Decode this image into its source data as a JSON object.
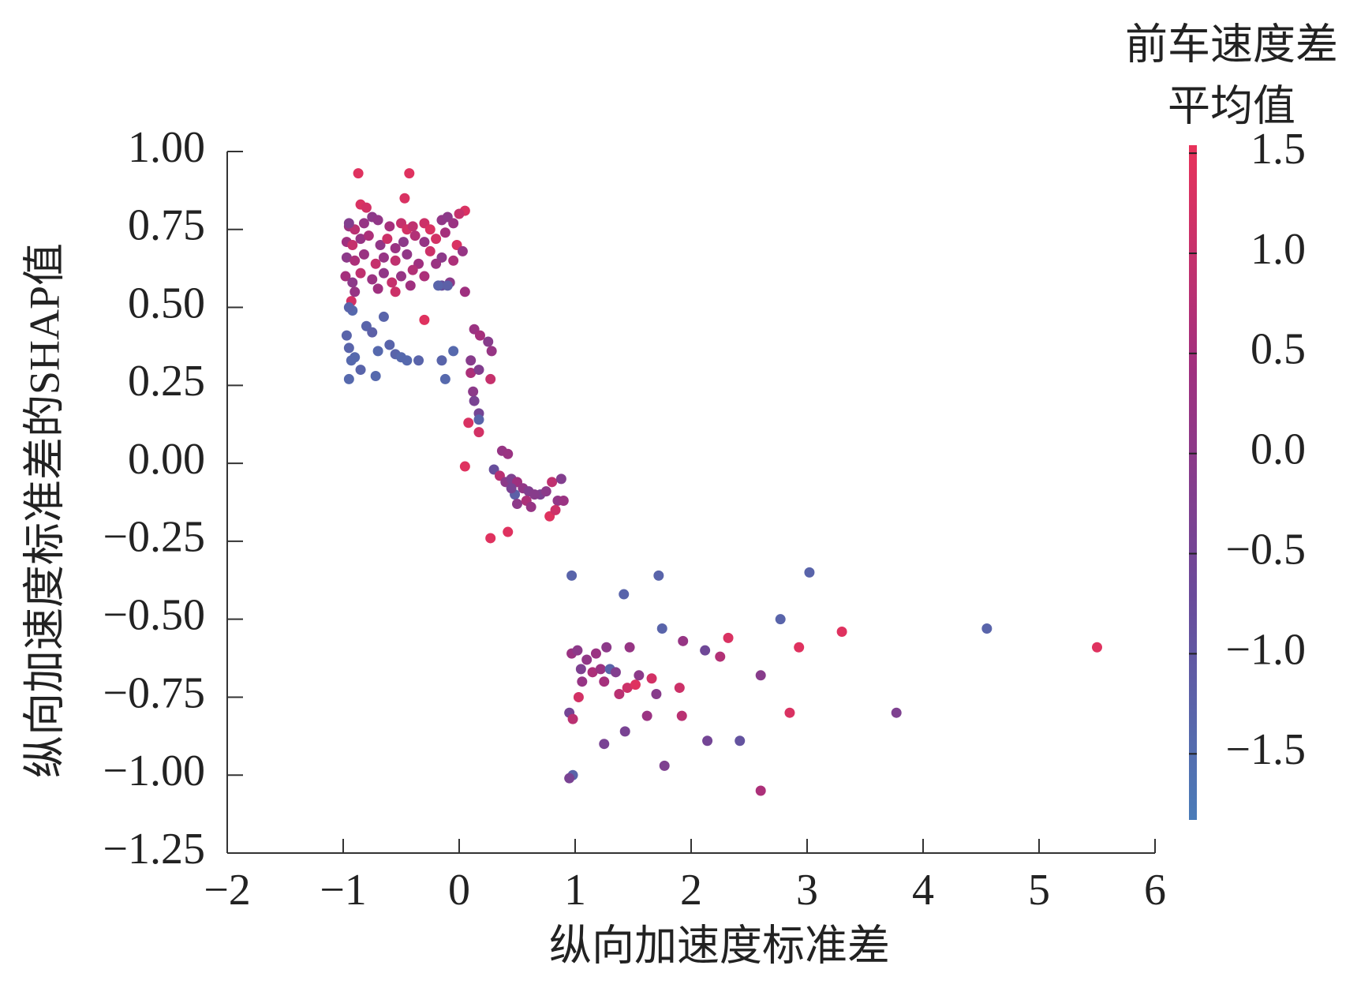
{
  "chart_data": {
    "type": "scatter",
    "xlabel": "纵向加速度标准差",
    "ylabel": "纵向加速度标准差的SHAP值",
    "colorbar_title": [
      "前车速度差",
      "平均值"
    ],
    "xlim": [
      -2,
      6
    ],
    "ylim": [
      -1.25,
      1.0
    ],
    "xticks": [
      {
        "value": -2,
        "label": "−2"
      },
      {
        "value": -1,
        "label": "−1"
      },
      0,
      1,
      2,
      3,
      4,
      5,
      6
    ],
    "yticks": [
      {
        "value": 1.0,
        "label": "1.00"
      },
      {
        "value": 0.75,
        "label": "0.75"
      },
      {
        "value": 0.5,
        "label": "0.50"
      },
      {
        "value": 0.25,
        "label": "0.25"
      },
      {
        "value": 0,
        "label": "0.00"
      },
      {
        "value": -0.25,
        "label": "−0.25"
      },
      {
        "value": -0.5,
        "label": "−0.50"
      },
      {
        "value": -0.75,
        "label": "−0.75"
      },
      {
        "value": -1.0,
        "label": "−1.00"
      },
      {
        "value": -1.25,
        "label": "−1.25"
      }
    ],
    "clim": [
      -1.83,
      1.54
    ],
    "cticks": [
      {
        "value": 1.5,
        "label": "1.5"
      },
      {
        "value": 1.0,
        "label": "1.0"
      },
      {
        "value": 0.5,
        "label": "0.5"
      },
      {
        "value": 0,
        "label": "0.0"
      },
      {
        "value": -0.5,
        "label": "−0.5"
      },
      {
        "value": -1.0,
        "label": "−1.0"
      },
      {
        "value": -1.5,
        "label": "−1.5"
      }
    ],
    "colormap": [
      "#4a7cb8",
      "#6a4a9a",
      "#a0307f",
      "#e8325a"
    ],
    "points": [
      [
        -0.87,
        0.93,
        1.4
      ],
      [
        -0.43,
        0.93,
        1.4
      ],
      [
        -0.47,
        0.85,
        1.3
      ],
      [
        -0.85,
        0.83,
        1.3
      ],
      [
        -0.8,
        0.82,
        1.2
      ],
      [
        0.05,
        0.81,
        1.3
      ],
      [
        -0.95,
        0.76,
        0.3
      ],
      [
        -0.9,
        0.75,
        0.8
      ],
      [
        -0.82,
        0.77,
        0.2
      ],
      [
        -0.75,
        0.79,
        0.0
      ],
      [
        -0.7,
        0.78,
        0.1
      ],
      [
        -0.6,
        0.76,
        0.5
      ],
      [
        -0.5,
        0.77,
        1.0
      ],
      [
        -0.45,
        0.75,
        1.2
      ],
      [
        -0.4,
        0.76,
        0.9
      ],
      [
        -0.3,
        0.77,
        1.1
      ],
      [
        -0.25,
        0.75,
        1.3
      ],
      [
        -0.15,
        0.78,
        0.1
      ],
      [
        -0.1,
        0.79,
        0.0
      ],
      [
        -0.05,
        0.77,
        0.3
      ],
      [
        0.0,
        0.8,
        1.0
      ],
      [
        -0.97,
        0.71,
        0.4
      ],
      [
        -0.92,
        0.7,
        1.0
      ],
      [
        -0.85,
        0.72,
        0.2
      ],
      [
        -0.78,
        0.73,
        0.6
      ],
      [
        -0.68,
        0.7,
        0.1
      ],
      [
        -0.62,
        0.72,
        1.1
      ],
      [
        -0.55,
        0.69,
        0.3
      ],
      [
        -0.48,
        0.71,
        0.0
      ],
      [
        -0.38,
        0.73,
        0.7
      ],
      [
        -0.3,
        0.71,
        0.2
      ],
      [
        -0.2,
        0.72,
        1.2
      ],
      [
        -0.12,
        0.74,
        0.5
      ],
      [
        -0.02,
        0.7,
        1.3
      ],
      [
        -0.97,
        0.66,
        0.0
      ],
      [
        -0.9,
        0.65,
        0.6
      ],
      [
        -0.82,
        0.67,
        0.3
      ],
      [
        -0.72,
        0.64,
        1.0
      ],
      [
        -0.65,
        0.66,
        0.2
      ],
      [
        -0.55,
        0.65,
        0.9
      ],
      [
        -0.45,
        0.67,
        0.1
      ],
      [
        -0.35,
        0.64,
        0.4
      ],
      [
        -0.25,
        0.68,
        1.1
      ],
      [
        -0.15,
        0.66,
        0.0
      ],
      [
        -0.05,
        0.65,
        0.6
      ],
      [
        0.03,
        0.68,
        0.2
      ],
      [
        -0.98,
        0.6,
        0.5
      ],
      [
        -0.92,
        0.58,
        0.0
      ],
      [
        -0.85,
        0.61,
        0.9
      ],
      [
        -0.75,
        0.59,
        0.3
      ],
      [
        -0.65,
        0.61,
        0.1
      ],
      [
        -0.58,
        0.58,
        1.0
      ],
      [
        -0.5,
        0.6,
        0.2
      ],
      [
        -0.42,
        0.57,
        0.4
      ],
      [
        -0.3,
        0.6,
        0.6
      ],
      [
        -0.15,
        0.57,
        -0.8
      ],
      [
        -0.08,
        0.58,
        0.0
      ],
      [
        0.05,
        0.55,
        0.4
      ],
      [
        -0.93,
        0.52,
        1.2
      ],
      [
        -0.9,
        0.55,
        0.2
      ],
      [
        -0.7,
        0.56,
        0.4
      ],
      [
        -0.55,
        0.55,
        1.1
      ],
      [
        -0.3,
        0.46,
        1.4
      ],
      [
        -0.2,
        0.64,
        0.3
      ],
      [
        -0.95,
        0.77,
        -0.2
      ],
      [
        -0.4,
        0.62,
        0.7
      ],
      [
        -0.97,
        0.41,
        -1.3
      ],
      [
        -0.95,
        0.37,
        -1.3
      ],
      [
        -0.93,
        0.33,
        -1.4
      ],
      [
        -0.92,
        0.49,
        -1.4
      ],
      [
        -0.95,
        0.5,
        -1.3
      ],
      [
        -0.9,
        0.34,
        -1.4
      ],
      [
        -0.95,
        0.27,
        -1.4
      ],
      [
        -0.85,
        0.3,
        -1.3
      ],
      [
        -0.8,
        0.44,
        -1.3
      ],
      [
        -0.75,
        0.42,
        -1.2
      ],
      [
        -0.7,
        0.36,
        -1.4
      ],
      [
        -0.65,
        0.47,
        -1.3
      ],
      [
        -0.6,
        0.38,
        -1.3
      ],
      [
        -0.55,
        0.35,
        -1.3
      ],
      [
        -0.5,
        0.34,
        -1.4
      ],
      [
        -0.45,
        0.33,
        -1.4
      ],
      [
        -0.72,
        0.28,
        -1.4
      ],
      [
        -0.35,
        0.33,
        -1.3
      ],
      [
        -0.15,
        0.33,
        -1.3
      ],
      [
        -0.12,
        0.27,
        -1.4
      ],
      [
        -0.05,
        0.36,
        -1.4
      ],
      [
        -0.18,
        0.57,
        -1.3
      ],
      [
        -0.1,
        0.57,
        -1.2
      ],
      [
        0.13,
        0.43,
        0.3
      ],
      [
        0.18,
        0.41,
        0.5
      ],
      [
        0.25,
        0.39,
        -0.1
      ],
      [
        0.28,
        0.36,
        0.2
      ],
      [
        0.1,
        0.33,
        -0.1
      ],
      [
        0.1,
        0.29,
        0.6
      ],
      [
        0.17,
        0.3,
        -0.2
      ],
      [
        0.27,
        0.27,
        1.0
      ],
      [
        0.12,
        0.23,
        0.0
      ],
      [
        0.13,
        0.2,
        -0.4
      ],
      [
        0.17,
        0.16,
        -0.5
      ],
      [
        0.17,
        0.14,
        -1.3
      ],
      [
        0.08,
        0.13,
        1.3
      ],
      [
        0.17,
        0.1,
        1.2
      ],
      [
        0.05,
        -0.01,
        1.4
      ],
      [
        0.37,
        0.04,
        0.2
      ],
      [
        0.42,
        0.03,
        0.3
      ],
      [
        0.3,
        -0.02,
        -0.8
      ],
      [
        0.35,
        -0.04,
        0.8
      ],
      [
        0.4,
        -0.06,
        0.0
      ],
      [
        0.45,
        -0.05,
        -0.3
      ],
      [
        0.5,
        -0.06,
        0.4
      ],
      [
        0.55,
        -0.08,
        0.1
      ],
      [
        0.6,
        -0.09,
        -0.2
      ],
      [
        0.48,
        -0.1,
        -1.2
      ],
      [
        0.5,
        -0.13,
        0.0
      ],
      [
        0.58,
        -0.12,
        0.6
      ],
      [
        0.62,
        -0.14,
        0.2
      ],
      [
        0.7,
        -0.1,
        -0.3
      ],
      [
        0.75,
        -0.09,
        0.0
      ],
      [
        0.8,
        -0.06,
        0.9
      ],
      [
        0.88,
        -0.05,
        -0.2
      ],
      [
        0.85,
        -0.12,
        0.1
      ],
      [
        0.78,
        -0.17,
        1.4
      ],
      [
        0.83,
        -0.15,
        1.1
      ],
      [
        0.9,
        -0.12,
        0.3
      ],
      [
        0.27,
        -0.24,
        1.4
      ],
      [
        0.42,
        -0.22,
        1.4
      ],
      [
        0.45,
        -0.08,
        -0.4
      ],
      [
        0.65,
        -0.1,
        -0.1
      ],
      [
        0.97,
        -0.36,
        -1.3
      ],
      [
        1.42,
        -0.42,
        -1.3
      ],
      [
        1.72,
        -0.36,
        -1.3
      ],
      [
        3.02,
        -0.35,
        -1.3
      ],
      [
        1.75,
        -0.53,
        -1.3
      ],
      [
        2.77,
        -0.5,
        -1.3
      ],
      [
        4.55,
        -0.53,
        -1.3
      ],
      [
        2.32,
        -0.56,
        1.3
      ],
      [
        3.3,
        -0.54,
        1.4
      ],
      [
        2.93,
        -0.59,
        1.4
      ],
      [
        5.5,
        -0.59,
        1.4
      ],
      [
        0.97,
        -0.61,
        0.3
      ],
      [
        1.02,
        -0.6,
        0.0
      ],
      [
        1.1,
        -0.63,
        0.1
      ],
      [
        1.18,
        -0.61,
        0.3
      ],
      [
        1.27,
        -0.59,
        0.0
      ],
      [
        1.47,
        -0.59,
        0.2
      ],
      [
        1.05,
        -0.66,
        -0.3
      ],
      [
        1.15,
        -0.67,
        0.6
      ],
      [
        1.22,
        -0.66,
        0.3
      ],
      [
        1.3,
        -0.66,
        -1.3
      ],
      [
        1.35,
        -0.67,
        -0.2
      ],
      [
        1.06,
        -0.7,
        0.2
      ],
      [
        1.25,
        -0.7,
        0.5
      ],
      [
        1.38,
        -0.74,
        0.8
      ],
      [
        1.45,
        -0.72,
        1.1
      ],
      [
        1.52,
        -0.71,
        1.4
      ],
      [
        1.55,
        -0.68,
        0.0
      ],
      [
        1.66,
        -0.69,
        1.2
      ],
      [
        1.9,
        -0.72,
        1.1
      ],
      [
        1.93,
        -0.57,
        0.2
      ],
      [
        2.12,
        -0.6,
        -0.6
      ],
      [
        2.25,
        -0.62,
        0.7
      ],
      [
        2.6,
        -0.68,
        -0.1
      ],
      [
        1.03,
        -0.75,
        1.2
      ],
      [
        1.7,
        -0.74,
        -0.1
      ],
      [
        0.95,
        -0.8,
        -0.5
      ],
      [
        0.98,
        -0.82,
        0.8
      ],
      [
        1.43,
        -0.86,
        -0.4
      ],
      [
        1.25,
        -0.9,
        -0.4
      ],
      [
        1.62,
        -0.81,
        0.3
      ],
      [
        1.92,
        -0.81,
        0.8
      ],
      [
        2.85,
        -0.8,
        1.3
      ],
      [
        3.77,
        -0.8,
        -0.3
      ],
      [
        2.14,
        -0.89,
        -0.5
      ],
      [
        2.42,
        -0.89,
        -0.9
      ],
      [
        1.77,
        -0.97,
        -0.3
      ],
      [
        0.98,
        -1.0,
        -1.3
      ],
      [
        0.95,
        -1.01,
        -0.4
      ],
      [
        2.6,
        -1.05,
        0.6
      ]
    ]
  }
}
